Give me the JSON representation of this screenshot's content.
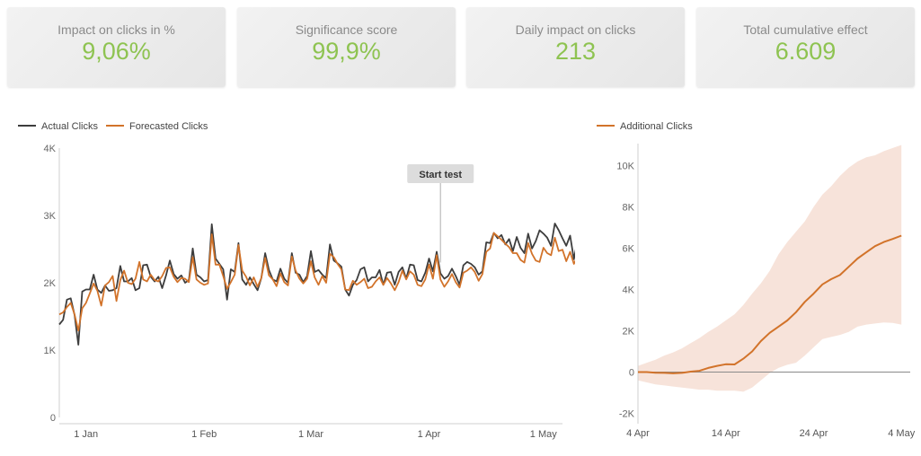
{
  "kpis": [
    {
      "label": "Impact on clicks in %",
      "value": "9,06%"
    },
    {
      "label": "Significance score",
      "value": "99,9%"
    },
    {
      "label": "Daily impact on clicks",
      "value": "213"
    },
    {
      "label": "Total cumulative effect",
      "value": "6.609"
    }
  ],
  "colors": {
    "actual": "#3d3d3d",
    "forecast": "#d2732a",
    "band": "#f7e3da",
    "kpi_value": "#8ec351"
  },
  "chart_data": [
    {
      "type": "line",
      "legend": {
        "placement": "top-left",
        "items": [
          "Actual Clicks",
          "Forecasted Clicks"
        ]
      },
      "x_ticks": [
        "1 Jan",
        "1 Feb",
        "1 Mar",
        "1 Apr",
        "1 May"
      ],
      "y_ticks": [
        "0",
        "1K",
        "2K",
        "3K",
        "4K"
      ],
      "ylim": [
        0,
        4000
      ],
      "x_range": [
        "2021-12-25",
        "2022-05-06"
      ],
      "annotation": {
        "label": "Start test",
        "x": "2022-04-04"
      },
      "series": [
        {
          "name": "Actual Clicks",
          "start": "2021-12-25",
          "values": [
            1380,
            1450,
            1750,
            1770,
            1520,
            1080,
            1870,
            1900,
            1900,
            2120,
            1900,
            1850,
            1960,
            1880,
            1890,
            1920,
            2250,
            2020,
            2020,
            2070,
            1890,
            1920,
            2260,
            2270,
            2090,
            2020,
            2090,
            1920,
            2110,
            2330,
            2130,
            2060,
            2110,
            2000,
            2040,
            2510,
            2120,
            2080,
            2020,
            2040,
            2870,
            2360,
            2280,
            2200,
            1750,
            2200,
            2160,
            2590,
            2050,
            1970,
            2080,
            1980,
            1890,
            2070,
            2440,
            2190,
            2050,
            2020,
            2210,
            2060,
            2000,
            2440,
            2150,
            2120,
            2010,
            2100,
            2470,
            2160,
            2190,
            2120,
            2070,
            2570,
            2330,
            2290,
            2240,
            1900,
            1810,
            1970,
            2040,
            2200,
            2230,
            2020,
            2080,
            2080,
            2190,
            1970,
            2150,
            2160,
            1970,
            2160,
            2230,
            2060,
            2270,
            2260,
            2040,
            2020,
            2150,
            2360,
            2170,
            2460,
            2140,
            2060,
            2100,
            2210,
            2100,
            1970,
            2260,
            2310,
            2280,
            2230,
            2120,
            2170,
            2600,
            2590,
            2740,
            2660,
            2710,
            2570,
            2650,
            2470,
            2680,
            2520,
            2440,
            2730,
            2510,
            2620,
            2780,
            2730,
            2670,
            2550,
            2880,
            2780,
            2660,
            2550,
            2700,
            2350,
            2650,
            2720,
            2380,
            2410,
            2330,
            2500,
            2430
          ]
        },
        {
          "name": "Forecasted Clicks",
          "start": "2021-12-25",
          "values": [
            1530,
            1560,
            1640,
            1700,
            1530,
            1290,
            1620,
            1700,
            1840,
            1990,
            1880,
            1660,
            1960,
            2010,
            2100,
            1730,
            2040,
            2180,
            2000,
            1980,
            2060,
            2310,
            2050,
            2020,
            2120,
            2040,
            2020,
            2100,
            2220,
            2230,
            2090,
            2010,
            2070,
            2060,
            2010,
            2380,
            2050,
            2000,
            1970,
            1990,
            2720,
            2270,
            2270,
            2100,
            1910,
            2010,
            2120,
            2560,
            2180,
            2090,
            1960,
            2080,
            1940,
            2070,
            2370,
            2110,
            2050,
            1950,
            2140,
            2010,
            1960,
            2390,
            2180,
            2060,
            1990,
            2060,
            2320,
            2080,
            1970,
            2100,
            2000,
            2430,
            2380,
            2280,
            2200,
            1900,
            1890,
            2030,
            1970,
            2010,
            2060,
            1920,
            1940,
            2020,
            2080,
            1970,
            2070,
            1990,
            1890,
            2010,
            2180,
            2050,
            2170,
            2120,
            1970,
            1950,
            2050,
            2270,
            2060,
            2410,
            2050,
            1940,
            2020,
            2130,
            2010,
            1930,
            2150,
            2180,
            2230,
            2160,
            2030,
            2130,
            2460,
            2510,
            2740,
            2690,
            2640,
            2580,
            2530,
            2440,
            2440,
            2340,
            2300,
            2590,
            2430,
            2330,
            2310,
            2520,
            2440,
            2410,
            2670,
            2470,
            2490,
            2320,
            2460,
            2280,
            2400,
            2360,
            2220,
            2170,
            2190,
            2280,
            2270
          ]
        }
      ]
    },
    {
      "type": "area",
      "legend": {
        "placement": "top-left",
        "items": [
          "Additional Clicks"
        ]
      },
      "x_ticks": [
        "4  Apr",
        "14  Apr",
        "24  Apr",
        "4  May"
      ],
      "y_ticks": [
        "-2K",
        "0",
        "2K",
        "4K",
        "6K",
        "8K",
        "10K"
      ],
      "ylim": [
        -2500,
        11500
      ],
      "x_range": [
        "2022-04-04",
        "2022-05-05"
      ],
      "series": [
        {
          "name": "Additional Clicks",
          "start": "2022-04-04",
          "values": [
            0,
            0,
            -30,
            -40,
            -60,
            -40,
            20,
            60,
            200,
            300,
            380,
            370,
            650,
            1000,
            1500,
            1900,
            2200,
            2500,
            2900,
            3400,
            3800,
            4250,
            4500,
            4700,
            5100,
            5500,
            5800,
            6100,
            6300,
            6450,
            6609
          ],
          "lower": [
            -400,
            -500,
            -600,
            -650,
            -700,
            -750,
            -800,
            -850,
            -850,
            -900,
            -900,
            -900,
            -950,
            -750,
            -400,
            -50,
            200,
            350,
            450,
            800,
            1200,
            1600,
            1700,
            1800,
            1950,
            2200,
            2300,
            2350,
            2400,
            2380,
            2300
          ],
          "upper": [
            300,
            450,
            600,
            800,
            950,
            1150,
            1400,
            1650,
            1950,
            2200,
            2500,
            2800,
            3250,
            3800,
            4300,
            4900,
            5700,
            6300,
            6800,
            7300,
            8000,
            8600,
            9000,
            9500,
            9900,
            10200,
            10400,
            10500,
            10700,
            10850,
            11000
          ]
        }
      ]
    }
  ]
}
